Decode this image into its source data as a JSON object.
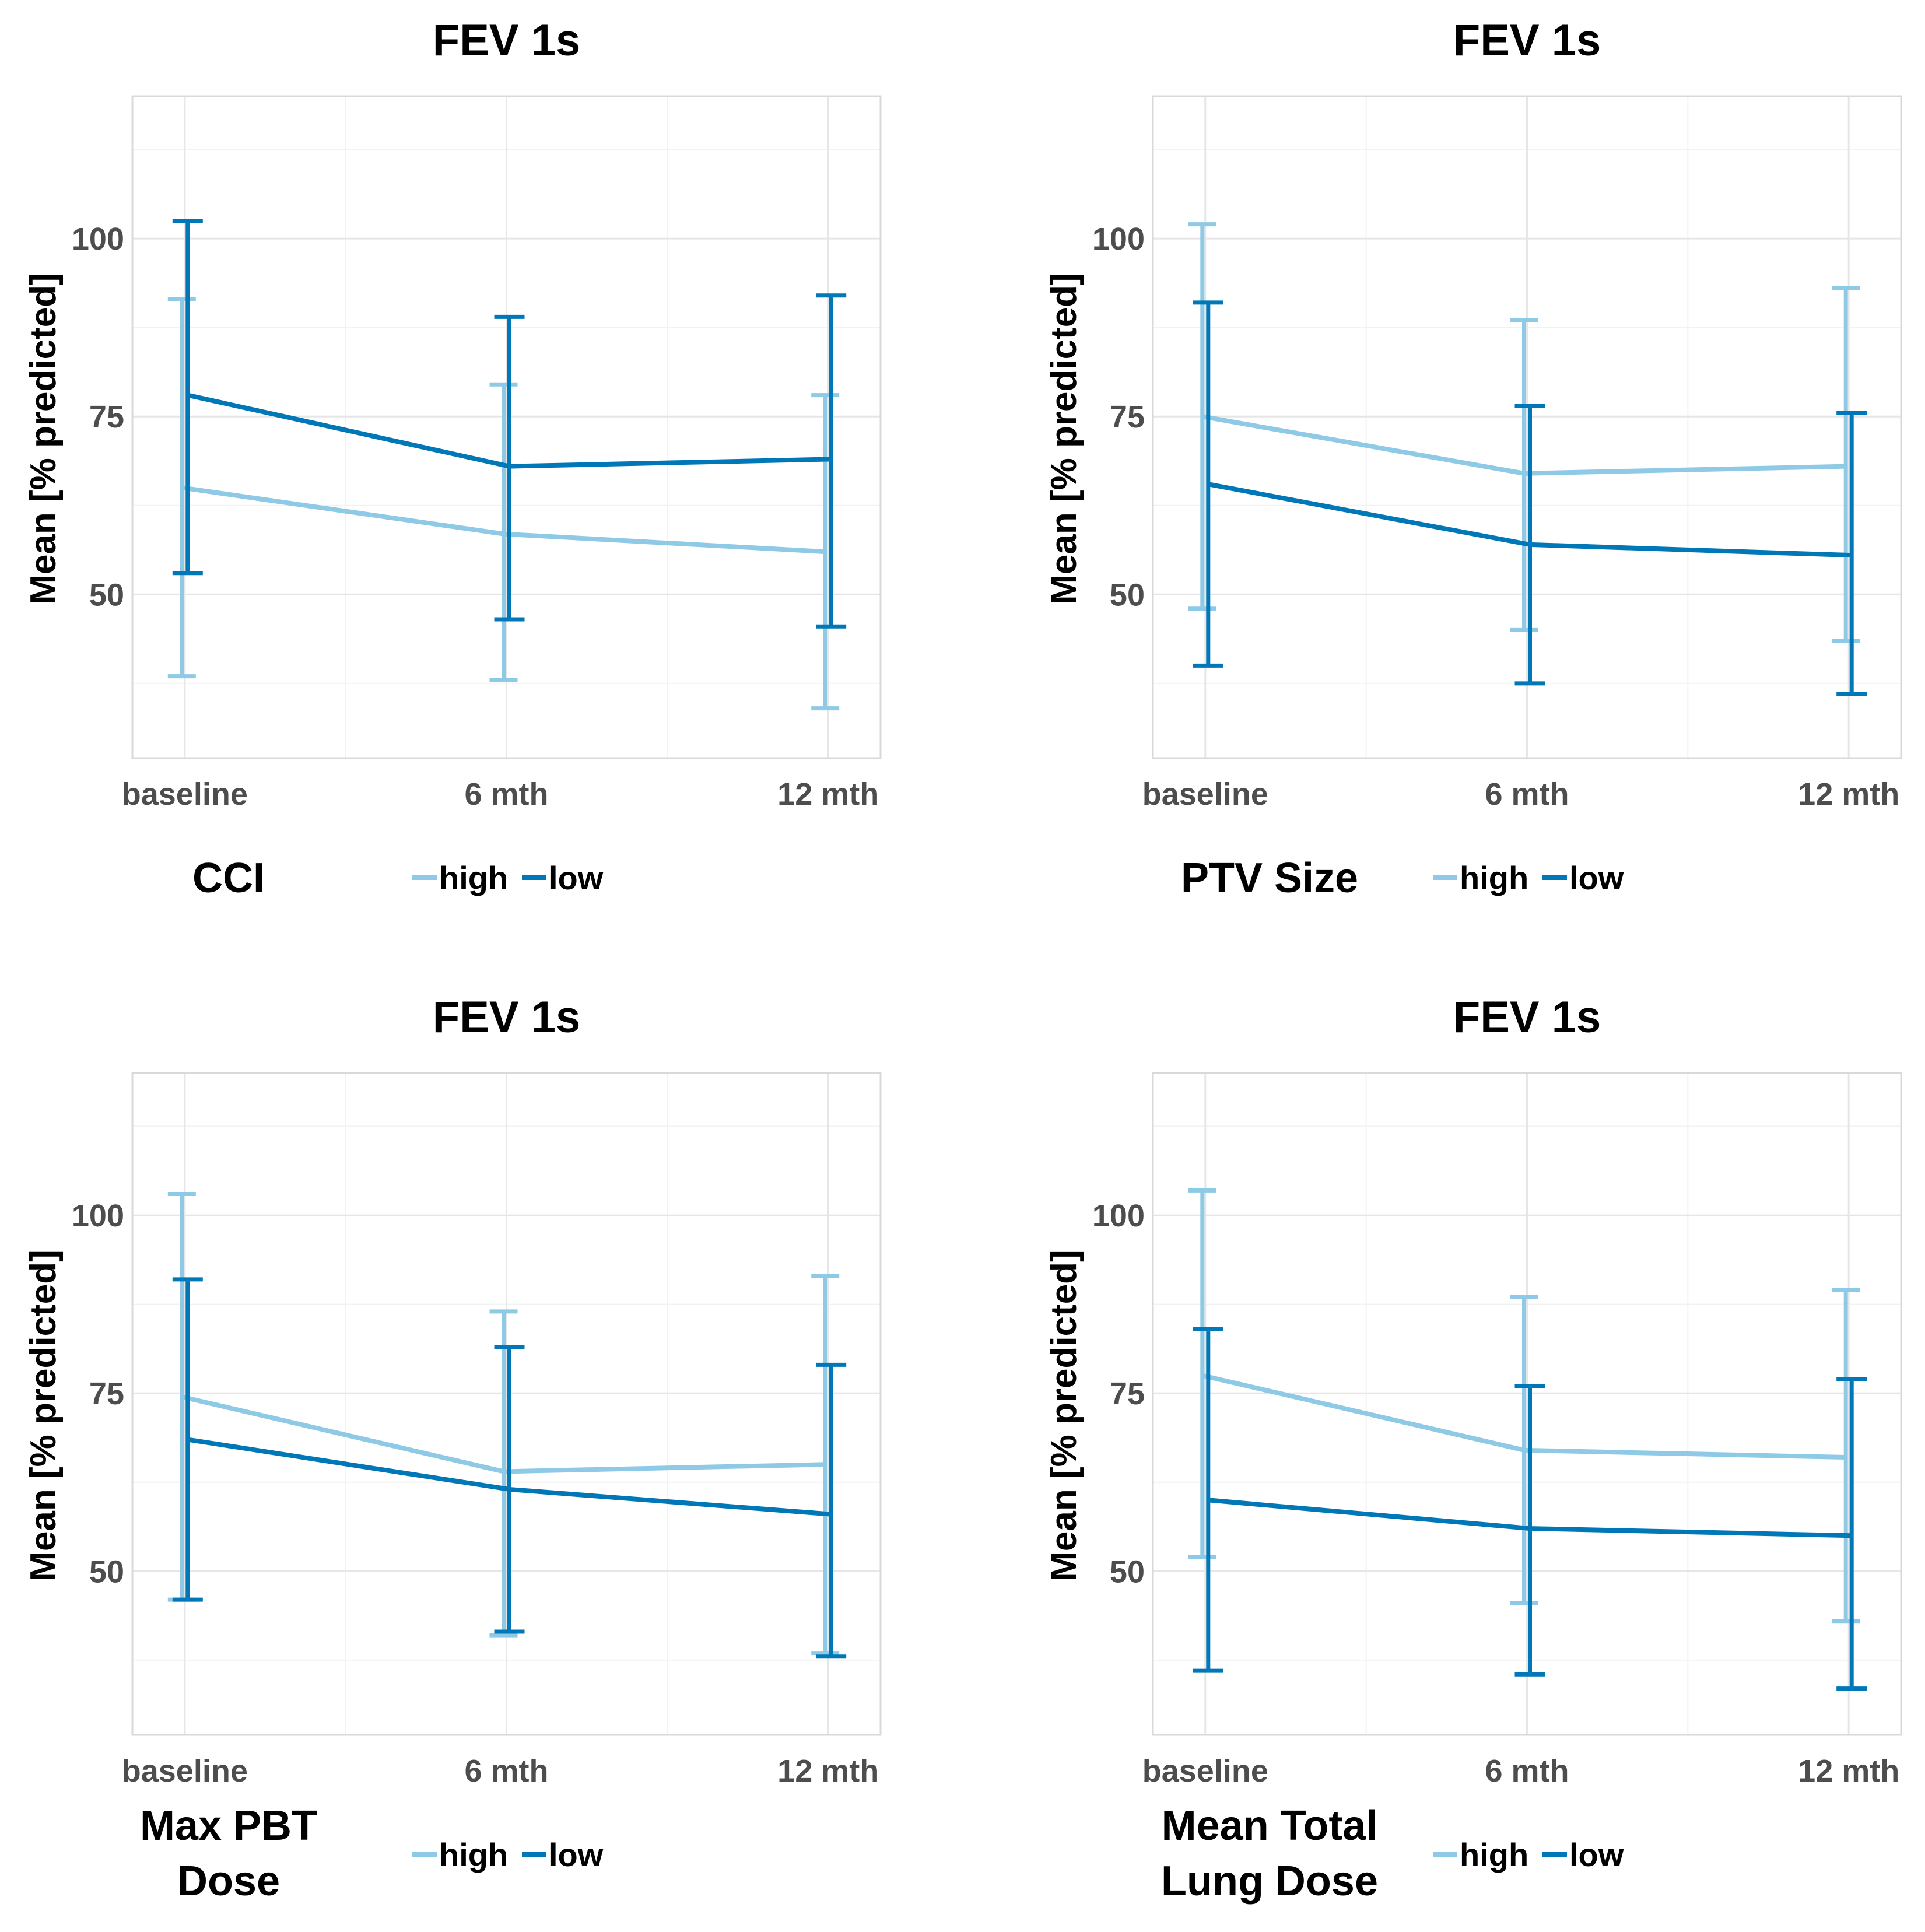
{
  "chart_data": [
    {
      "type": "line",
      "title": "FEV 1s",
      "ylabel": "Mean [% predicted]",
      "xlabel": "",
      "categories": [
        "baseline",
        "6 mth",
        "12 mth"
      ],
      "ylim": [
        27,
        120
      ],
      "yticks": [
        50,
        75,
        100
      ],
      "grid": true,
      "legend": {
        "title": [
          "CCI"
        ],
        "entries": [
          "high",
          "low"
        ],
        "placement": "bottom"
      },
      "series": [
        {
          "name": "high",
          "color": "#8ecae6",
          "values": [
            65,
            58.5,
            56
          ],
          "lower": [
            38.5,
            38,
            34
          ],
          "upper": [
            91.5,
            79.5,
            78
          ]
        },
        {
          "name": "low",
          "color": "#0077b6",
          "values": [
            78,
            68,
            69
          ],
          "lower": [
            53,
            46.5,
            45.5
          ],
          "upper": [
            102.5,
            89,
            92
          ]
        }
      ]
    },
    {
      "type": "line",
      "title": "FEV 1s",
      "ylabel": "Mean [% predicted]",
      "xlabel": "",
      "categories": [
        "baseline",
        "6 mth",
        "12 mth"
      ],
      "ylim": [
        27,
        120
      ],
      "yticks": [
        50,
        75,
        100
      ],
      "grid": true,
      "legend": {
        "title": [
          "PTV Size"
        ],
        "entries": [
          "high",
          "low"
        ],
        "placement": "bottom"
      },
      "series": [
        {
          "name": "high",
          "color": "#8ecae6",
          "values": [
            75,
            67,
            68
          ],
          "lower": [
            48,
            45,
            43.5
          ],
          "upper": [
            102,
            88.5,
            93
          ]
        },
        {
          "name": "low",
          "color": "#0077b6",
          "values": [
            65.5,
            57,
            55.5
          ],
          "lower": [
            40,
            37.5,
            36
          ],
          "upper": [
            91,
            76.5,
            75.5
          ]
        }
      ]
    },
    {
      "type": "line",
      "title": "FEV 1s",
      "ylabel": "Mean [% predicted]",
      "xlabel": "",
      "categories": [
        "baseline",
        "6 mth",
        "12 mth"
      ],
      "ylim": [
        27,
        120
      ],
      "yticks": [
        50,
        75,
        100
      ],
      "grid": true,
      "legend": {
        "title": [
          "Max PBT",
          "Dose"
        ],
        "entries": [
          "high",
          "low"
        ],
        "placement": "bottom"
      },
      "series": [
        {
          "name": "high",
          "color": "#8ecae6",
          "values": [
            74.5,
            64,
            65
          ],
          "lower": [
            46,
            41,
            38.5
          ],
          "upper": [
            103,
            86.5,
            91.5
          ]
        },
        {
          "name": "low",
          "color": "#0077b6",
          "values": [
            68.5,
            61.5,
            58
          ],
          "lower": [
            46,
            41.5,
            38
          ],
          "upper": [
            91,
            81.5,
            79
          ]
        }
      ]
    },
    {
      "type": "line",
      "title": "FEV 1s",
      "ylabel": "Mean [% predicted]",
      "xlabel": "",
      "categories": [
        "baseline",
        "6 mth",
        "12 mth"
      ],
      "ylim": [
        27,
        120
      ],
      "yticks": [
        50,
        75,
        100
      ],
      "grid": true,
      "legend": {
        "title": [
          "Mean Total",
          "Lung Dose"
        ],
        "entries": [
          "high",
          "low"
        ],
        "placement": "bottom"
      },
      "series": [
        {
          "name": "high",
          "color": "#8ecae6",
          "values": [
            77.5,
            67,
            66
          ],
          "lower": [
            52,
            45.5,
            43
          ],
          "upper": [
            103.5,
            88.5,
            89.5
          ]
        },
        {
          "name": "low",
          "color": "#0077b6",
          "values": [
            60,
            56,
            55
          ],
          "lower": [
            36,
            35.5,
            33.5
          ],
          "upper": [
            84,
            76,
            77
          ]
        }
      ]
    }
  ]
}
